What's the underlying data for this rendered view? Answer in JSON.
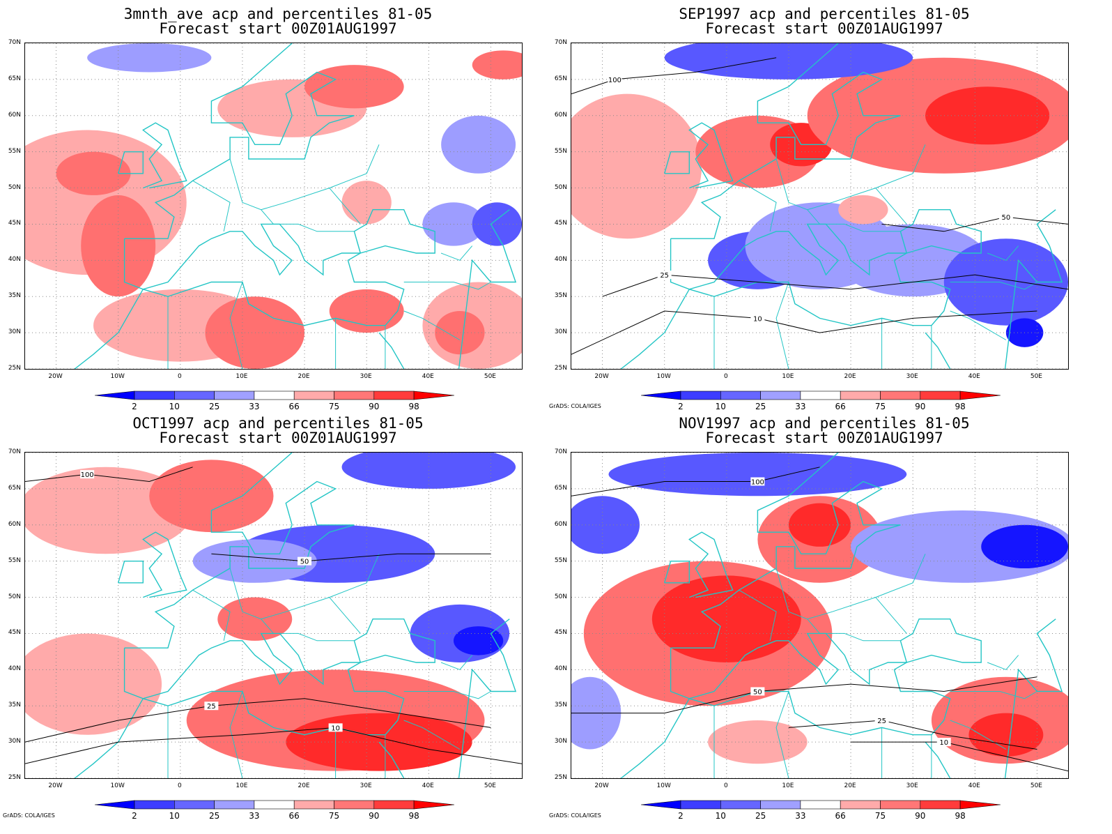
{
  "panels": [
    {
      "title": "3mnth_ave acp and percentiles 81-05",
      "subtitle": "Forecast start 00Z01AUG1997",
      "credit": "",
      "blobs": [
        {
          "lon": -15,
          "lat": 48,
          "rx": 16,
          "ry": 10,
          "cat": "66-75"
        },
        {
          "lon": -10,
          "lat": 42,
          "rx": 6,
          "ry": 7,
          "cat": "75-90"
        },
        {
          "lon": -14,
          "lat": 52,
          "rx": 6,
          "ry": 3,
          "cat": "75-90"
        },
        {
          "lon": 0,
          "lat": 31,
          "rx": 14,
          "ry": 5,
          "cat": "66-75"
        },
        {
          "lon": 12,
          "lat": 30,
          "rx": 8,
          "ry": 5,
          "cat": "75-90"
        },
        {
          "lon": 30,
          "lat": 33,
          "rx": 6,
          "ry": 3,
          "cat": "75-90"
        },
        {
          "lon": 48,
          "lat": 31,
          "rx": 9,
          "ry": 6,
          "cat": "66-75"
        },
        {
          "lon": 45,
          "lat": 30,
          "rx": 4,
          "ry": 3,
          "cat": "75-90"
        },
        {
          "lon": 18,
          "lat": 61,
          "rx": 12,
          "ry": 4,
          "cat": "66-75"
        },
        {
          "lon": 28,
          "lat": 64,
          "rx": 8,
          "ry": 3,
          "cat": "75-90"
        },
        {
          "lon": 52,
          "lat": 67,
          "rx": 5,
          "ry": 2,
          "cat": "75-90"
        },
        {
          "lon": 30,
          "lat": 48,
          "rx": 4,
          "ry": 3,
          "cat": "66-75"
        },
        {
          "lon": -5,
          "lat": 68,
          "rx": 10,
          "ry": 2,
          "cat": "25-33"
        },
        {
          "lon": 44,
          "lat": 45,
          "rx": 5,
          "ry": 3,
          "cat": "25-33"
        },
        {
          "lon": 51,
          "lat": 45,
          "rx": 4,
          "ry": 3,
          "cat": "10-25"
        },
        {
          "lon": 48,
          "lat": 56,
          "rx": 6,
          "ry": 4,
          "cat": "25-33"
        }
      ],
      "contours": []
    },
    {
      "title": "SEP1997 acp and percentiles 81-05",
      "subtitle": "Forecast start 00Z01AUG1997",
      "credit": "GrADS: COLA/IGES",
      "blobs": [
        {
          "lon": -16,
          "lat": 53,
          "rx": 12,
          "ry": 10,
          "cat": "66-75"
        },
        {
          "lon": 5,
          "lat": 55,
          "rx": 10,
          "ry": 5,
          "cat": "75-90"
        },
        {
          "lon": 12,
          "lat": 56,
          "rx": 5,
          "ry": 3,
          "cat": "90-98"
        },
        {
          "lon": 35,
          "lat": 60,
          "rx": 22,
          "ry": 8,
          "cat": "75-90"
        },
        {
          "lon": 42,
          "lat": 60,
          "rx": 10,
          "ry": 4,
          "cat": "90-98"
        },
        {
          "lon": 10,
          "lat": 68,
          "rx": 20,
          "ry": 3,
          "cat": "10-25"
        },
        {
          "lon": 5,
          "lat": 40,
          "rx": 8,
          "ry": 4,
          "cat": "10-25"
        },
        {
          "lon": 15,
          "lat": 42,
          "rx": 12,
          "ry": 6,
          "cat": "25-33"
        },
        {
          "lon": 30,
          "lat": 40,
          "rx": 12,
          "ry": 5,
          "cat": "25-33"
        },
        {
          "lon": 45,
          "lat": 37,
          "rx": 10,
          "ry": 6,
          "cat": "10-25"
        },
        {
          "lon": 48,
          "lat": 30,
          "rx": 3,
          "ry": 2,
          "cat": "2-10"
        },
        {
          "lon": 22,
          "lat": 47,
          "rx": 4,
          "ry": 2,
          "cat": "66-75"
        }
      ],
      "contours": [
        {
          "level": "100",
          "points": [
            [
              -25,
              63
            ],
            [
              -18,
              65
            ],
            [
              -5,
              66
            ],
            [
              8,
              68
            ]
          ],
          "label_at": [
            -18,
            65
          ]
        },
        {
          "level": "50",
          "points": [
            [
              25,
              45
            ],
            [
              35,
              44
            ],
            [
              45,
              46
            ],
            [
              55,
              45
            ]
          ],
          "label_at": [
            45,
            46
          ]
        },
        {
          "level": "25",
          "points": [
            [
              -20,
              35
            ],
            [
              -10,
              38
            ],
            [
              5,
              37
            ],
            [
              20,
              36
            ],
            [
              40,
              38
            ],
            [
              55,
              36
            ]
          ],
          "label_at": [
            -10,
            38
          ]
        },
        {
          "level": "10",
          "points": [
            [
              -25,
              27
            ],
            [
              -10,
              33
            ],
            [
              5,
              32
            ],
            [
              15,
              30
            ],
            [
              30,
              32
            ],
            [
              50,
              33
            ]
          ],
          "label_at": [
            5,
            32
          ]
        }
      ]
    },
    {
      "title": "OCT1997 acp and percentiles 81-05",
      "subtitle": "Forecast start 00Z01AUG1997",
      "credit": "GrADS: COLA/IGES",
      "blobs": [
        {
          "lon": -12,
          "lat": 62,
          "rx": 14,
          "ry": 6,
          "cat": "66-75"
        },
        {
          "lon": 5,
          "lat": 64,
          "rx": 10,
          "ry": 5,
          "cat": "75-90"
        },
        {
          "lon": 25,
          "lat": 33,
          "rx": 24,
          "ry": 7,
          "cat": "75-90"
        },
        {
          "lon": 32,
          "lat": 30,
          "rx": 15,
          "ry": 4,
          "cat": "90-98"
        },
        {
          "lon": -15,
          "lat": 38,
          "rx": 12,
          "ry": 7,
          "cat": "66-75"
        },
        {
          "lon": 12,
          "lat": 47,
          "rx": 6,
          "ry": 3,
          "cat": "75-90"
        },
        {
          "lon": 25,
          "lat": 56,
          "rx": 16,
          "ry": 4,
          "cat": "10-25"
        },
        {
          "lon": 12,
          "lat": 55,
          "rx": 10,
          "ry": 3,
          "cat": "25-33"
        },
        {
          "lon": 45,
          "lat": 45,
          "rx": 8,
          "ry": 4,
          "cat": "10-25"
        },
        {
          "lon": 48,
          "lat": 44,
          "rx": 4,
          "ry": 2,
          "cat": "2-10"
        },
        {
          "lon": 40,
          "lat": 68,
          "rx": 14,
          "ry": 3,
          "cat": "10-25"
        }
      ],
      "contours": [
        {
          "level": "100",
          "points": [
            [
              -25,
              66
            ],
            [
              -15,
              67
            ],
            [
              -5,
              66
            ],
            [
              2,
              68
            ]
          ],
          "label_at": [
            -15,
            67
          ]
        },
        {
          "level": "50",
          "points": [
            [
              5,
              56
            ],
            [
              20,
              55
            ],
            [
              35,
              56
            ],
            [
              50,
              56
            ]
          ],
          "label_at": [
            20,
            55
          ]
        },
        {
          "level": "25",
          "points": [
            [
              -25,
              30
            ],
            [
              -10,
              33
            ],
            [
              5,
              35
            ],
            [
              20,
              36
            ],
            [
              35,
              34
            ],
            [
              50,
              32
            ]
          ],
          "label_at": [
            5,
            35
          ]
        },
        {
          "level": "10",
          "points": [
            [
              -25,
              27
            ],
            [
              -10,
              30
            ],
            [
              10,
              31
            ],
            [
              25,
              32
            ],
            [
              40,
              29
            ],
            [
              55,
              27
            ]
          ],
          "label_at": [
            25,
            32
          ]
        }
      ]
    },
    {
      "title": "NOV1997 acp and percentiles 81-05",
      "subtitle": "Forecast start 00Z01AUG1997",
      "credit": "GrADS: COLA/IGES",
      "blobs": [
        {
          "lon": -3,
          "lat": 45,
          "rx": 20,
          "ry": 10,
          "cat": "75-90"
        },
        {
          "lon": 0,
          "lat": 47,
          "rx": 12,
          "ry": 6,
          "cat": "90-98"
        },
        {
          "lon": 15,
          "lat": 58,
          "rx": 10,
          "ry": 6,
          "cat": "75-90"
        },
        {
          "lon": 15,
          "lat": 60,
          "rx": 5,
          "ry": 3,
          "cat": "90-98"
        },
        {
          "lon": 5,
          "lat": 67,
          "rx": 24,
          "ry": 3,
          "cat": "10-25"
        },
        {
          "lon": -20,
          "lat": 60,
          "rx": 6,
          "ry": 4,
          "cat": "10-25"
        },
        {
          "lon": 38,
          "lat": 57,
          "rx": 18,
          "ry": 5,
          "cat": "25-33"
        },
        {
          "lon": 48,
          "lat": 57,
          "rx": 7,
          "ry": 3,
          "cat": "2-10"
        },
        {
          "lon": 45,
          "lat": 33,
          "rx": 12,
          "ry": 6,
          "cat": "75-90"
        },
        {
          "lon": 45,
          "lat": 31,
          "rx": 6,
          "ry": 3,
          "cat": "90-98"
        },
        {
          "lon": 5,
          "lat": 30,
          "rx": 8,
          "ry": 3,
          "cat": "66-75"
        },
        {
          "lon": -22,
          "lat": 34,
          "rx": 5,
          "ry": 5,
          "cat": "25-33"
        }
      ],
      "contours": [
        {
          "level": "100",
          "points": [
            [
              -25,
              64
            ],
            [
              -10,
              66
            ],
            [
              5,
              66
            ],
            [
              15,
              68
            ]
          ],
          "label_at": [
            5,
            66
          ]
        },
        {
          "level": "50",
          "points": [
            [
              -25,
              34
            ],
            [
              -10,
              34
            ],
            [
              5,
              37
            ],
            [
              20,
              38
            ],
            [
              35,
              37
            ],
            [
              50,
              39
            ]
          ],
          "label_at": [
            5,
            37
          ]
        },
        {
          "level": "25",
          "points": [
            [
              10,
              32
            ],
            [
              25,
              33
            ],
            [
              35,
              31
            ],
            [
              50,
              29
            ]
          ],
          "label_at": [
            25,
            33
          ]
        },
        {
          "level": "10",
          "points": [
            [
              20,
              30
            ],
            [
              35,
              30
            ],
            [
              45,
              28
            ],
            [
              55,
              26
            ]
          ],
          "label_at": [
            35,
            30
          ]
        }
      ]
    }
  ],
  "axes": {
    "lat_labels": [
      "70N",
      "65N",
      "60N",
      "55N",
      "50N",
      "45N",
      "40N",
      "35N",
      "30N",
      "25N"
    ],
    "lat_values": [
      70,
      65,
      60,
      55,
      50,
      45,
      40,
      35,
      30,
      25
    ],
    "lon_labels": [
      "20W",
      "10W",
      "0",
      "10E",
      "20E",
      "30E",
      "40E",
      "50E"
    ],
    "lon_values": [
      -20,
      -10,
      0,
      10,
      20,
      30,
      40,
      50
    ],
    "lon_range": [
      -25,
      55
    ],
    "lat_range": [
      25,
      70
    ]
  },
  "colorbar": {
    "labels": [
      "2",
      "10",
      "25",
      "33",
      "66",
      "75",
      "90",
      "98"
    ],
    "colors": [
      "#0000ff",
      "#3d3dff",
      "#6666ff",
      "#a0a0ff",
      "#ffffff",
      "#ffaaaa",
      "#ff7777",
      "#ff3c3c",
      "#ff0000"
    ]
  },
  "categories": {
    "2-10": "#1515ff",
    "10-25": "#5858ff",
    "25-33": "#9d9dff",
    "66-75": "#ffaaaa",
    "75-90": "#ff7070",
    "90-98": "#ff2a2a"
  },
  "coast_color": "#22c5c5",
  "contour_color": "#000000"
}
